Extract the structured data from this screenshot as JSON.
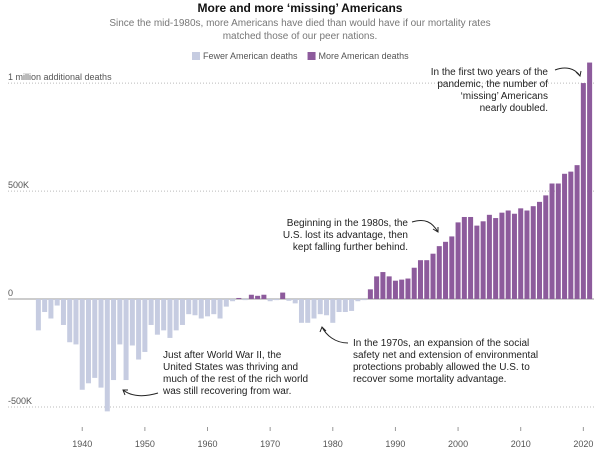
{
  "chart_data": {
    "type": "bar",
    "title": "More and more ‘missing’ Americans",
    "subtitle": [
      "Since the mid-1980s, more Americans have died than would have if our mortality rates",
      "matched those of our peer nations."
    ],
    "legend": [
      {
        "name": "Fewer American deaths",
        "color": "#c6cce1"
      },
      {
        "name": "More American deaths",
        "color": "#8d5b9c"
      }
    ],
    "x": [
      1933,
      1934,
      1935,
      1936,
      1937,
      1938,
      1939,
      1940,
      1941,
      1942,
      1943,
      1944,
      1945,
      1946,
      1947,
      1948,
      1949,
      1950,
      1951,
      1952,
      1953,
      1954,
      1955,
      1956,
      1957,
      1958,
      1959,
      1960,
      1961,
      1962,
      1963,
      1964,
      1965,
      1966,
      1967,
      1968,
      1969,
      1970,
      1971,
      1972,
      1973,
      1974,
      1975,
      1976,
      1977,
      1978,
      1979,
      1980,
      1981,
      1982,
      1983,
      1984,
      1985,
      1986,
      1987,
      1988,
      1989,
      1990,
      1991,
      1992,
      1993,
      1994,
      1995,
      1996,
      1997,
      1998,
      1999,
      2000,
      2001,
      2002,
      2003,
      2004,
      2005,
      2006,
      2007,
      2008,
      2009,
      2010,
      2011,
      2012,
      2013,
      2014,
      2015,
      2016,
      2017,
      2018,
      2019,
      2020,
      2021
    ],
    "values": [
      -145000,
      -60000,
      -90000,
      -30000,
      -120000,
      -200000,
      -210000,
      -420000,
      -390000,
      -365000,
      -410000,
      -520000,
      -375000,
      -210000,
      -375000,
      -215000,
      -280000,
      -245000,
      -120000,
      -165000,
      -145000,
      -180000,
      -145000,
      -120000,
      -70000,
      -75000,
      -90000,
      -80000,
      -70000,
      -90000,
      -35000,
      -10000,
      5000,
      -5000,
      20000,
      15000,
      20000,
      -10000,
      -5000,
      30000,
      -8000,
      -20000,
      -110000,
      -110000,
      -90000,
      -70000,
      -75000,
      -110000,
      -60000,
      -60000,
      -55000,
      -10000,
      -5000,
      45000,
      105000,
      125000,
      105000,
      85000,
      90000,
      95000,
      145000,
      180000,
      180000,
      210000,
      245000,
      265000,
      290000,
      355000,
      380000,
      380000,
      340000,
      360000,
      390000,
      375000,
      400000,
      410000,
      395000,
      420000,
      410000,
      430000,
      450000,
      480000,
      535000,
      535000,
      580000,
      590000,
      620000,
      1000000,
      1095000
    ],
    "xlim": [
      1932.3,
      2021.7
    ],
    "xticks": [
      1940,
      1950,
      1960,
      1970,
      1980,
      1990,
      2000,
      2010,
      2020
    ],
    "ylim": [
      -560000,
      1130000
    ],
    "yticks": [
      {
        "value": -500000,
        "label": "-500K"
      },
      0,
      {
        "value": 500000,
        "label": "500K"
      },
      {
        "value": 1000000,
        "label": "1 million additional deaths"
      }
    ],
    "grid": true,
    "annotations": [
      [
        "In the first two years of the",
        "pandemic, the number of",
        "‘missing’ Americans",
        "nearly doubled."
      ],
      [
        "Beginning in the 1980s, the",
        "U.S. lost its advantage, then",
        "kept falling further behind."
      ],
      [
        "In the 1970s, an expansion of the social",
        "safety net and extension of environmental",
        "protections probably allowed the U.S. to",
        "recover some mortality advantage."
      ],
      [
        "Just after World War II, the",
        "United States was thriving and",
        "much of the rest of the rich world",
        "was still recovering from war."
      ]
    ]
  }
}
